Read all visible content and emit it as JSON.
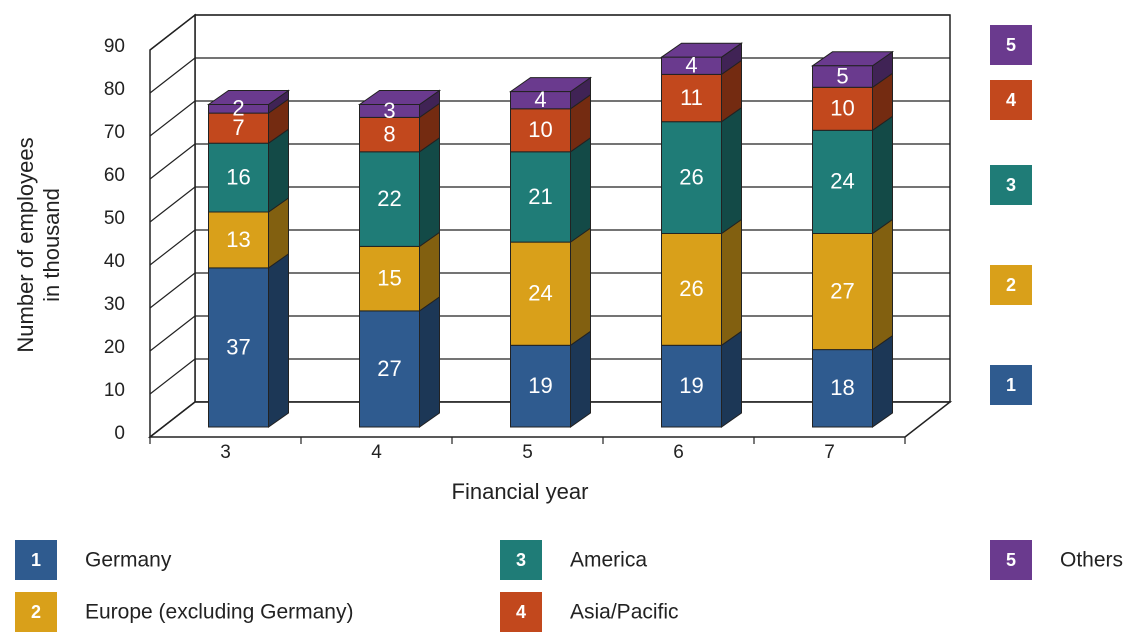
{
  "chart_data": {
    "type": "bar3d_stacked",
    "y_label": [
      "Number of employees",
      "in thousand"
    ],
    "x_label": "Financial year",
    "categories": [
      "3",
      "4",
      "5",
      "6",
      "7"
    ],
    "series": [
      {
        "key": "1",
        "name": "Germany",
        "color": "#2f5b8f",
        "values": [
          37,
          27,
          19,
          19,
          18
        ]
      },
      {
        "key": "2",
        "name": "Europe (excluding Germany)",
        "color": "#d9a01a",
        "values": [
          13,
          15,
          24,
          26,
          27
        ]
      },
      {
        "key": "3",
        "name": "America",
        "color": "#1f7c77",
        "values": [
          16,
          22,
          21,
          26,
          24
        ]
      },
      {
        "key": "4",
        "name": "Asia/Pacific",
        "color": "#c2481d",
        "values": [
          7,
          8,
          10,
          11,
          10
        ]
      },
      {
        "key": "5",
        "name": "Others",
        "color": "#6a3a8e",
        "values": [
          2,
          3,
          4,
          4,
          5
        ]
      }
    ],
    "ylim": [
      0,
      90
    ],
    "yticks": [
      0,
      10,
      20,
      30,
      40,
      50,
      60,
      70,
      80,
      90
    ],
    "grid": true
  }
}
